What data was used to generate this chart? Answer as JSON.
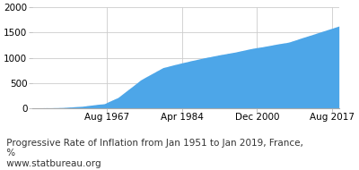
{
  "caption_line1": " Progressive Rate of Inflation from Jan 1951 to Jan 2019, France,",
  "caption_line2": " %",
  "caption_line3": " www.statbureau.org",
  "fill_color": "#4da6e8",
  "line_color": "#4da6e8",
  "background_color": "#ffffff",
  "grid_color": "#cccccc",
  "ylim": [
    0,
    2000
  ],
  "yticks": [
    0,
    500,
    1000,
    1500,
    2000
  ],
  "xtick_labels": [
    "Aug 1967",
    "Apr 1984",
    "Dec 2000",
    "Aug 2017"
  ],
  "xtick_years": [
    1967.583,
    1984.25,
    2000.917,
    2017.583
  ],
  "start_year": 1951.0,
  "end_year": 2019.083,
  "caption_fontsize": 7.5,
  "tick_fontsize": 7.5
}
